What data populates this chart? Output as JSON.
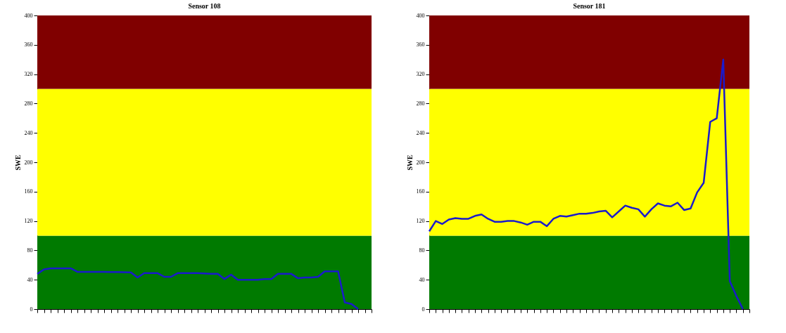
{
  "chart_data": [
    {
      "type": "line",
      "title": "Sensor 108",
      "ylabel": "SWE",
      "categories": [
        null,
        null,
        null,
        null,
        null,
        null,
        null,
        null,
        null,
        null,
        null,
        null,
        null,
        null,
        null,
        null,
        null,
        null,
        null,
        null,
        null,
        null,
        null,
        null,
        null,
        null,
        null,
        null,
        null,
        null,
        null,
        null,
        null,
        null,
        null,
        null,
        null,
        null,
        null,
        null,
        null,
        null,
        null,
        null,
        null,
        null,
        null,
        null,
        null,
        null,
        null
      ],
      "ylim": [
        0,
        400
      ],
      "yticks": [
        0,
        40,
        80,
        120,
        160,
        200,
        240,
        280,
        320,
        360,
        400
      ],
      "grid": false,
      "bands": [
        {
          "axis": "y",
          "from": 0,
          "to": 100,
          "color": "#007a00"
        },
        {
          "axis": "y",
          "from": 100,
          "to": 300,
          "color": "#ffff00"
        },
        {
          "axis": "y",
          "from": 300,
          "to": 400,
          "color": "#800000"
        }
      ],
      "series": [
        {
          "color": "#1a1acc",
          "values": [
            48,
            54,
            55.6,
            55.6,
            55.6,
            55.6,
            50.8,
            50.8,
            50.8,
            50.8,
            50.6,
            50.5,
            50.4,
            50.2,
            50,
            43,
            49,
            49,
            49,
            44,
            44,
            49,
            49,
            49,
            49,
            48.5,
            48,
            48,
            41,
            47,
            40,
            40,
            40,
            40,
            41,
            41,
            48,
            48,
            48,
            42,
            43,
            43,
            44,
            51.5,
            51.5,
            51.5,
            9,
            7,
            0,
            null,
            null
          ]
        }
      ]
    },
    {
      "type": "line",
      "title": "Sensor 181",
      "ylabel": "SWE",
      "categories": [
        null,
        null,
        null,
        null,
        null,
        null,
        null,
        null,
        null,
        null,
        null,
        null,
        null,
        null,
        null,
        null,
        null,
        null,
        null,
        null,
        null,
        null,
        null,
        null,
        null,
        null,
        null,
        null,
        null,
        null,
        null,
        null,
        null,
        null,
        null,
        null,
        null,
        null,
        null,
        null,
        null,
        null,
        null,
        null,
        null,
        null,
        null,
        null,
        null,
        null
      ],
      "ylim": [
        0,
        400
      ],
      "yticks": [
        0,
        40,
        80,
        120,
        160,
        200,
        240,
        280,
        320,
        360,
        400
      ],
      "grid": false,
      "bands": [
        {
          "axis": "y",
          "from": 0,
          "to": 100,
          "color": "#007a00"
        },
        {
          "axis": "y",
          "from": 100,
          "to": 300,
          "color": "#ffff00"
        },
        {
          "axis": "y",
          "from": 300,
          "to": 400,
          "color": "#800000"
        }
      ],
      "series": [
        {
          "color": "#1a1acc",
          "values": [
            106,
            120,
            116,
            122,
            124,
            123,
            123,
            127,
            129,
            123,
            119,
            119,
            120,
            120,
            118,
            115,
            119,
            119,
            113,
            123,
            127,
            126,
            128,
            130,
            130,
            131,
            133,
            134,
            125,
            133,
            141,
            138,
            136,
            126,
            136,
            144,
            141,
            140,
            145,
            135,
            137,
            159,
            172,
            255,
            260,
            340,
            38,
            18,
            0,
            null
          ]
        }
      ]
    }
  ]
}
